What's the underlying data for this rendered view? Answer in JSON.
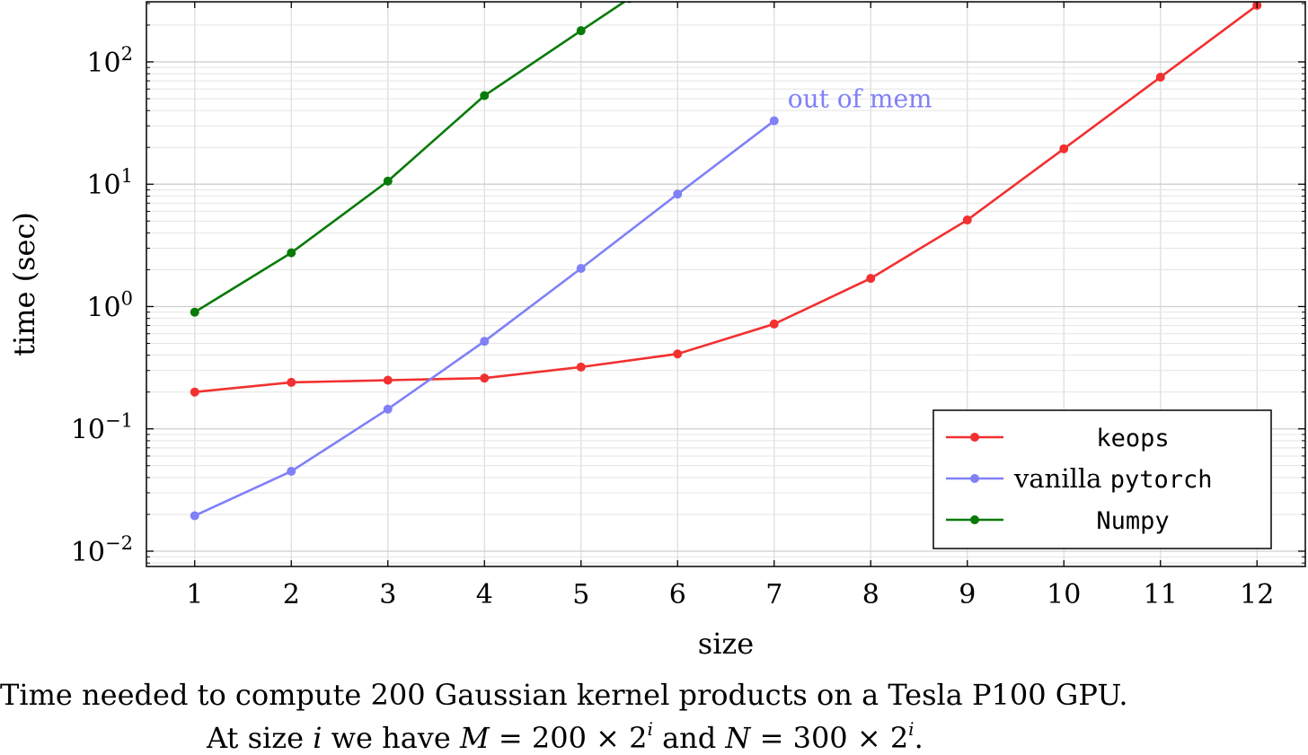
{
  "chart_data": {
    "type": "line",
    "xlabel": "size",
    "ylabel": "time (sec)",
    "x": [
      1,
      2,
      3,
      4,
      5,
      6,
      7,
      8,
      9,
      10,
      11,
      12
    ],
    "xlim": [
      0.5,
      12.5
    ],
    "ylim": [
      0.0075,
      310
    ],
    "yscale": "log",
    "ytick_values": [
      0.01,
      0.1,
      1,
      10,
      100
    ],
    "ytick_labels": [
      {
        "base": "10",
        "exp": "−2"
      },
      {
        "base": "10",
        "exp": "−1"
      },
      {
        "base": "10",
        "exp": "0"
      },
      {
        "base": "10",
        "exp": "1"
      },
      {
        "base": "10",
        "exp": "2"
      }
    ],
    "xtick_labels": [
      "1",
      "2",
      "3",
      "4",
      "5",
      "6",
      "7",
      "8",
      "9",
      "10",
      "11",
      "12"
    ],
    "grid": true,
    "legend_position": "bottom-right",
    "series": [
      {
        "name": "keops",
        "name_style": "mono",
        "color": "#f23030",
        "x": [
          1,
          2,
          3,
          4,
          5,
          6,
          7,
          8,
          9,
          10,
          11,
          12
        ],
        "values": [
          0.2,
          0.24,
          0.25,
          0.26,
          0.32,
          0.41,
          0.72,
          1.7,
          5.1,
          19.5,
          75,
          290
        ]
      },
      {
        "name_prefix": "vanilla ",
        "name": "pytorch",
        "name_style": "mono",
        "color": "#8080f8",
        "x": [
          1,
          2,
          3,
          4,
          5,
          6,
          7
        ],
        "values": [
          0.0195,
          0.045,
          0.145,
          0.52,
          2.05,
          8.3,
          33
        ]
      },
      {
        "name": "Numpy",
        "name_style": "mono",
        "color": "#087a08",
        "x": [
          1,
          2,
          3,
          4,
          5,
          5.5
        ],
        "values": [
          0.9,
          2.75,
          10.6,
          53,
          180,
          330
        ]
      }
    ],
    "annotations": [
      {
        "text": "out of mem",
        "x": 7,
        "y": 33,
        "color": "#8080f8"
      }
    ]
  },
  "caption": {
    "line1": "Time needed to compute 200 Gaussian kernel products on a Tesla P100 GPU.",
    "line2_parts": {
      "a": "At size ",
      "i1": "i",
      "b": " we have ",
      "M": "M",
      "c": " = 200 × 2",
      "i2": "i",
      "d": " and ",
      "N": "N",
      "e": " = 300 × 2",
      "i3": "i",
      "f": "."
    }
  }
}
